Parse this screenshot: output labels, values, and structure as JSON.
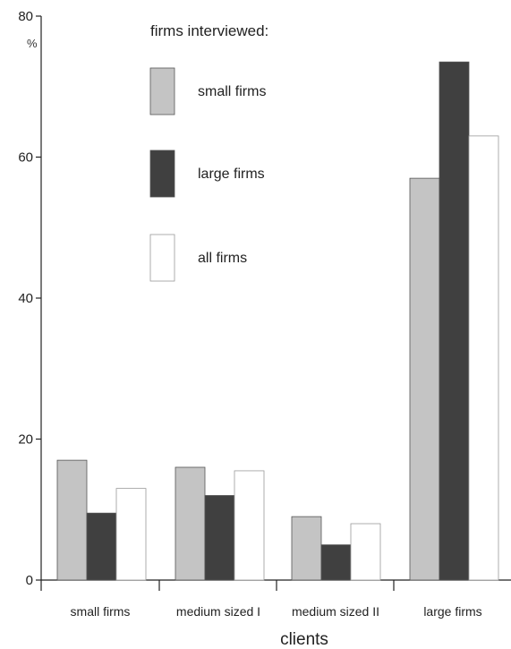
{
  "chart_data": {
    "type": "bar",
    "title": "firms interviewed:",
    "xlabel": "clients",
    "ylabel": "%",
    "ylim": [
      0,
      80
    ],
    "yticks": [
      0,
      20,
      40,
      60,
      80
    ],
    "categories": [
      "small firms",
      "medium sized I",
      "medium sized II",
      "large firms"
    ],
    "series": [
      {
        "name": "small firms",
        "values": [
          17,
          16,
          9,
          57
        ],
        "color": "#c4c4c4"
      },
      {
        "name": "large firms",
        "values": [
          9.5,
          12,
          5,
          73.5
        ],
        "color": "#404040"
      },
      {
        "name": "all firms",
        "values": [
          13,
          15.5,
          8,
          63
        ],
        "color": "#ffffff"
      }
    ],
    "legend_position": "top-left, inside plot",
    "grid": false
  }
}
